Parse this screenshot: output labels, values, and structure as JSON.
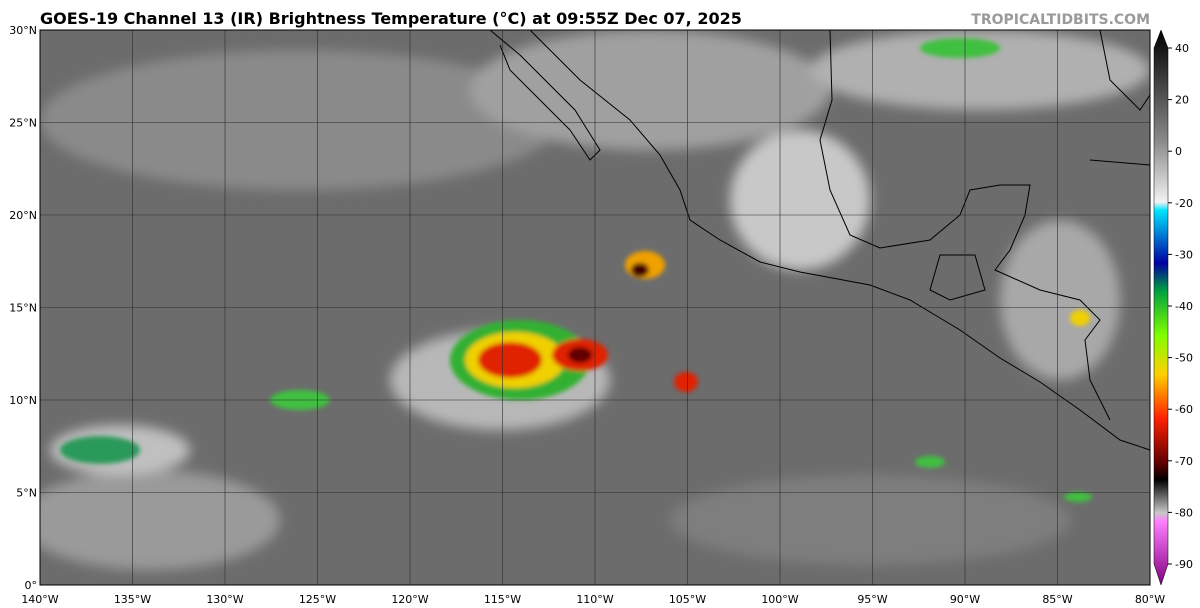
{
  "header": {
    "title": "GOES-19 Channel 13 (IR) Brightness Temperature (°C) at 09:55Z Dec 07, 2025",
    "watermark": "TROPICALTIDBITS.COM"
  },
  "map": {
    "lat_labels": [
      "0°",
      "5°N",
      "10°N",
      "15°N",
      "20°N",
      "25°N",
      "30°N"
    ],
    "lon_labels": [
      "140°W",
      "135°W",
      "130°W",
      "125°W",
      "120°W",
      "115°W",
      "110°W",
      "105°W",
      "100°W",
      "95°W",
      "90°W",
      "85°W",
      "80°W"
    ]
  },
  "colorbar": {
    "ticks": [
      40,
      20,
      0,
      -20,
      -30,
      -40,
      -50,
      -60,
      -70,
      -80,
      -90
    ]
  }
}
